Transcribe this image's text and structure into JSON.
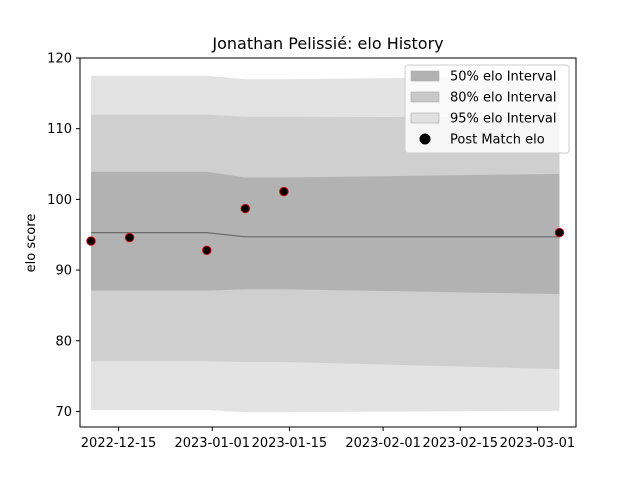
{
  "chart_data": {
    "type": "line",
    "title": "Jonathan Pelissié: elo History",
    "xlabel": "",
    "ylabel": "elo score",
    "ylim": [
      67.8,
      120
    ],
    "xlim": [
      "2022-12-08",
      "2023-03-08"
    ],
    "y_ticks": [
      70,
      80,
      90,
      100,
      110,
      120
    ],
    "x_ticks": [
      "2022-12-15",
      "2023-01-01",
      "2023-01-15",
      "2023-02-01",
      "2023-02-15",
      "2023-03-01"
    ],
    "legend_position": "top-right",
    "legend": [
      {
        "label": "50% elo Interval",
        "color": "#b2b2b2"
      },
      {
        "label": "80% elo Interval",
        "color": "#c8c8c8"
      },
      {
        "label": "95% elo Interval",
        "color": "#e0e0e0"
      },
      {
        "label": "Post Match elo",
        "color": "#000000"
      }
    ],
    "dates": [
      "2022-12-10",
      "2022-12-17",
      "2022-12-31",
      "2023-01-07",
      "2023-01-14",
      "2023-03-05"
    ],
    "mean": [
      95.3,
      95.3,
      95.3,
      94.7,
      94.7,
      94.7
    ],
    "band95": {
      "lower": [
        70.2,
        70.2,
        70.2,
        69.9,
        69.9,
        70.1
      ],
      "upper": [
        117.5,
        117.5,
        117.5,
        117.0,
        117.0,
        117.4
      ]
    },
    "band80": {
      "lower": [
        77.1,
        77.1,
        77.1,
        77.0,
        77.0,
        76.0
      ],
      "upper": [
        112.0,
        112.0,
        112.0,
        111.7,
        111.7,
        111.6
      ]
    },
    "band50": {
      "lower": [
        87.1,
        87.1,
        87.1,
        87.3,
        87.3,
        86.6
      ],
      "upper": [
        103.9,
        103.9,
        103.9,
        103.1,
        103.1,
        103.6
      ]
    },
    "points": [
      {
        "x": "2022-12-10",
        "y": 94.1
      },
      {
        "x": "2022-12-17",
        "y": 94.6
      },
      {
        "x": "2022-12-31",
        "y": 92.8
      },
      {
        "x": "2023-01-07",
        "y": 98.7
      },
      {
        "x": "2023-01-14",
        "y": 101.1
      },
      {
        "x": "2023-03-05",
        "y": 95.3
      }
    ],
    "colors": {
      "band50": "#b2b2b2",
      "band80": "#cfcfcf",
      "band95": "#e3e3e3",
      "mean_line": "#6b6b6b",
      "point_fill": "#000000",
      "point_edge": "#cc0000"
    }
  }
}
